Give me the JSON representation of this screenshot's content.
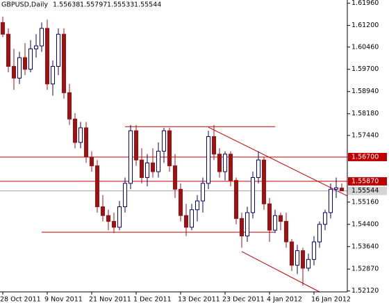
{
  "chart_data": {
    "type": "candlestick",
    "title": "GBPUSD,Daily",
    "categories": [
      "28 Oct 2011",
      null,
      null,
      null,
      null,
      null,
      null,
      null,
      "9 Nov 2011",
      null,
      null,
      null,
      null,
      null,
      null,
      null,
      "21 Nov 2011",
      null,
      null,
      null,
      null,
      null,
      null,
      null,
      "1 Dec 2011",
      null,
      null,
      null,
      null,
      null,
      null,
      null,
      "13 Dec 2011",
      null,
      null,
      null,
      null,
      null,
      null,
      null,
      "23 Dec 2011",
      null,
      null,
      null,
      null,
      null,
      null,
      null,
      "4 Jan 2012",
      null,
      null,
      null,
      null,
      null,
      null,
      null,
      "16 Jan 2012",
      null,
      null,
      null,
      null,
      null
    ],
    "open": [
      1.613,
      1.609,
      1.598,
      1.594,
      1.601,
      1.597,
      1.604,
      1.605,
      1.611,
      1.592,
      1.598,
      1.609,
      1.589,
      1.58,
      1.572,
      1.577,
      1.567,
      1.564,
      1.55,
      1.547,
      1.545,
      1.543,
      1.55,
      1.558,
      1.576,
      1.566,
      1.56,
      1.565,
      1.562,
      1.569,
      1.576,
      1.564,
      1.556,
      1.547,
      1.543,
      1.549,
      1.552,
      1.558,
      1.574,
      1.568,
      1.562,
      1.568,
      1.559,
      1.546,
      1.54,
      1.548,
      1.56,
      1.566,
      1.551,
      1.542,
      1.547,
      1.545,
      1.538,
      1.53,
      1.535,
      1.529,
      1.532,
      1.538,
      1.544,
      1.548,
      1.556,
      1.55638
    ],
    "high": [
      1.615,
      1.611,
      1.604,
      1.603,
      1.606,
      1.607,
      1.609,
      1.613,
      1.614,
      1.6,
      1.611,
      1.611,
      1.592,
      1.582,
      1.579,
      1.579,
      1.569,
      1.566,
      1.554,
      1.549,
      1.548,
      1.552,
      1.56,
      1.578,
      1.578,
      1.57,
      1.568,
      1.57,
      1.572,
      1.577,
      1.577,
      1.568,
      1.558,
      1.551,
      1.551,
      1.554,
      1.56,
      1.576,
      1.578,
      1.57,
      1.569,
      1.569,
      1.56,
      1.548,
      1.55,
      1.562,
      1.569,
      1.567,
      1.553,
      1.549,
      1.548,
      1.548,
      1.539,
      1.537,
      1.536,
      1.534,
      1.54,
      1.545,
      1.549,
      1.558,
      1.56,
      1.55797
    ],
    "low": [
      1.608,
      1.596,
      1.59,
      1.592,
      1.595,
      1.596,
      1.601,
      1.603,
      1.59,
      1.588,
      1.595,
      1.587,
      1.578,
      1.57,
      1.57,
      1.565,
      1.562,
      1.548,
      1.545,
      1.542,
      1.541,
      1.542,
      1.548,
      1.556,
      1.564,
      1.558,
      1.557,
      1.56,
      1.56,
      1.565,
      1.562,
      1.553,
      1.545,
      1.54,
      1.542,
      1.545,
      1.548,
      1.556,
      1.566,
      1.56,
      1.559,
      1.557,
      1.544,
      1.536,
      1.538,
      1.546,
      1.558,
      1.549,
      1.538,
      1.541,
      1.542,
      1.536,
      1.528,
      1.527,
      1.523,
      1.528,
      1.53,
      1.536,
      1.542,
      1.546,
      1.553,
      1.55533
    ],
    "close": [
      1.609,
      1.598,
      1.594,
      1.601,
      1.597,
      1.604,
      1.605,
      1.611,
      1.592,
      1.598,
      1.609,
      1.589,
      1.58,
      1.572,
      1.577,
      1.567,
      1.564,
      1.55,
      1.547,
      1.545,
      1.543,
      1.55,
      1.558,
      1.576,
      1.566,
      1.56,
      1.565,
      1.562,
      1.569,
      1.576,
      1.564,
      1.556,
      1.547,
      1.543,
      1.549,
      1.552,
      1.558,
      1.574,
      1.568,
      1.562,
      1.568,
      1.559,
      1.546,
      1.54,
      1.548,
      1.56,
      1.566,
      1.551,
      1.542,
      1.547,
      1.545,
      1.538,
      1.53,
      1.535,
      1.529,
      1.532,
      1.538,
      1.544,
      1.548,
      1.556,
      1.5565,
      1.55544
    ],
    "up_color": "#ffffff",
    "up_outline": "#000080",
    "down_color": "#a01010",
    "ylim": [
      1.5209,
      1.6207
    ],
    "yticks": [
      {
        "value": 1.6196,
        "label": "1.61960"
      },
      {
        "value": 1.612,
        "label": "1.61200"
      },
      {
        "value": 1.6046,
        "label": "1.60460"
      },
      {
        "value": 1.597,
        "label": "1.59700"
      },
      {
        "value": 1.5894,
        "label": "1.58940"
      },
      {
        "value": 1.5818,
        "label": "1.58180"
      },
      {
        "value": 1.5744,
        "label": "1.57440"
      },
      {
        "value": 1.5516,
        "label": "1.55160"
      },
      {
        "value": 1.544,
        "label": "1.54400"
      },
      {
        "value": 1.5364,
        "label": "1.53640"
      },
      {
        "value": 1.5287,
        "label": "1.52870"
      },
      {
        "value": 1.5212,
        "label": "1.52120"
      }
    ],
    "price_levels": [
      {
        "value": 1.567,
        "label": "1.56700",
        "color": "#c00000"
      },
      {
        "value": 1.5587,
        "label": "1.55870",
        "color": "#c00000"
      }
    ],
    "current_price": 1.55544,
    "trendlines": [
      {
        "x0": 22,
        "y0": 1.5774,
        "x1": 49,
        "y1": 1.5774
      },
      {
        "x0": 7,
        "y0": 1.5413,
        "x1": 49,
        "y1": 1.5413
      },
      {
        "x0": 37,
        "y0": 1.5772,
        "x1": 62,
        "y1": 1.5537
      },
      {
        "x0": 43,
        "y0": 1.5347,
        "x1": 57,
        "y1": 1.5209
      }
    ],
    "trend_color": "#c00000"
  }
}
